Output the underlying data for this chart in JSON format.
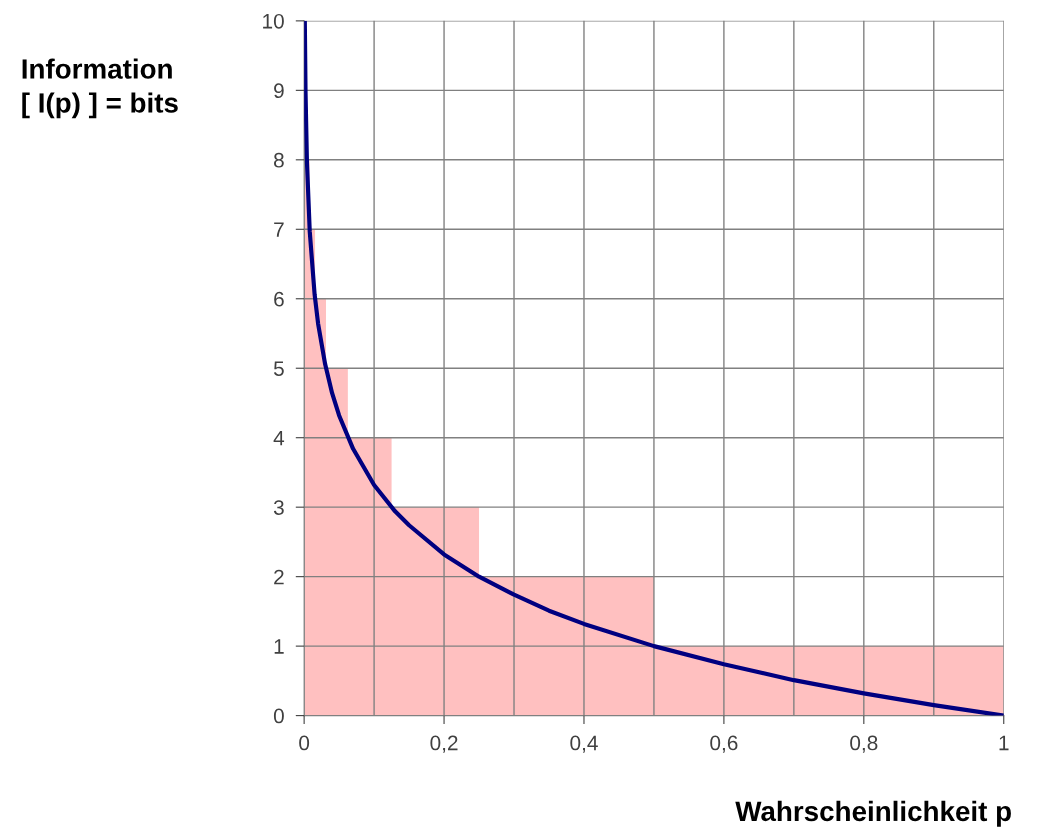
{
  "chart_data": {
    "type": "area",
    "xlabel": "Wahrscheinlichkeit p",
    "ylabel": "Information\n[ I(p) ] = bits",
    "series": [
      {
        "color": "#ffc0c0",
        "x": [
          0,
          0,
          0.00195,
          0.00195,
          0.0039,
          0.0039,
          0.0078,
          0.0078,
          0.0156,
          0.0156,
          0.03125,
          0.03125,
          0.0625,
          0.0625,
          0.125,
          0.125,
          0.25,
          0.25,
          0.5,
          0.5,
          1,
          1
        ],
        "values": [
          0,
          10,
          10,
          9,
          9,
          8,
          8,
          7,
          7,
          6,
          6,
          5,
          5,
          4,
          4,
          3,
          3,
          2,
          2,
          1,
          1,
          0
        ]
      },
      {
        "type": "line",
        "color": "#000080",
        "x": [
          0.001,
          0.002,
          0.004,
          0.008,
          0.015,
          0.02,
          0.03,
          0.04,
          0.05,
          0.07,
          0.1,
          0.13,
          0.15,
          0.2,
          0.25,
          0.3,
          0.35,
          0.4,
          0.5,
          0.6,
          0.7,
          0.8,
          0.9,
          1
        ],
        "values": [
          9.97,
          8.97,
          7.97,
          6.97,
          6.06,
          5.64,
          5.06,
          4.64,
          4.32,
          3.84,
          3.32,
          2.94,
          2.74,
          2.32,
          2,
          1.74,
          1.51,
          1.32,
          1,
          0.74,
          0.51,
          0.32,
          0.15,
          0
        ]
      }
    ],
    "xlim": [
      0,
      1
    ],
    "ylim": [
      0,
      10
    ],
    "xticks": [
      0,
      {
        "value": 0.2,
        "label": "0,2"
      },
      {
        "value": 0.4,
        "label": "0,4"
      },
      {
        "value": 0.6,
        "label": "0,6"
      },
      {
        "value": 0.8,
        "label": "0,8"
      },
      1
    ],
    "yticks": [
      0,
      1,
      2,
      3,
      4,
      5,
      6,
      7,
      8,
      9,
      10
    ],
    "grid": true,
    "legend": false,
    "marker": "none",
    "line_style": "solid"
  }
}
